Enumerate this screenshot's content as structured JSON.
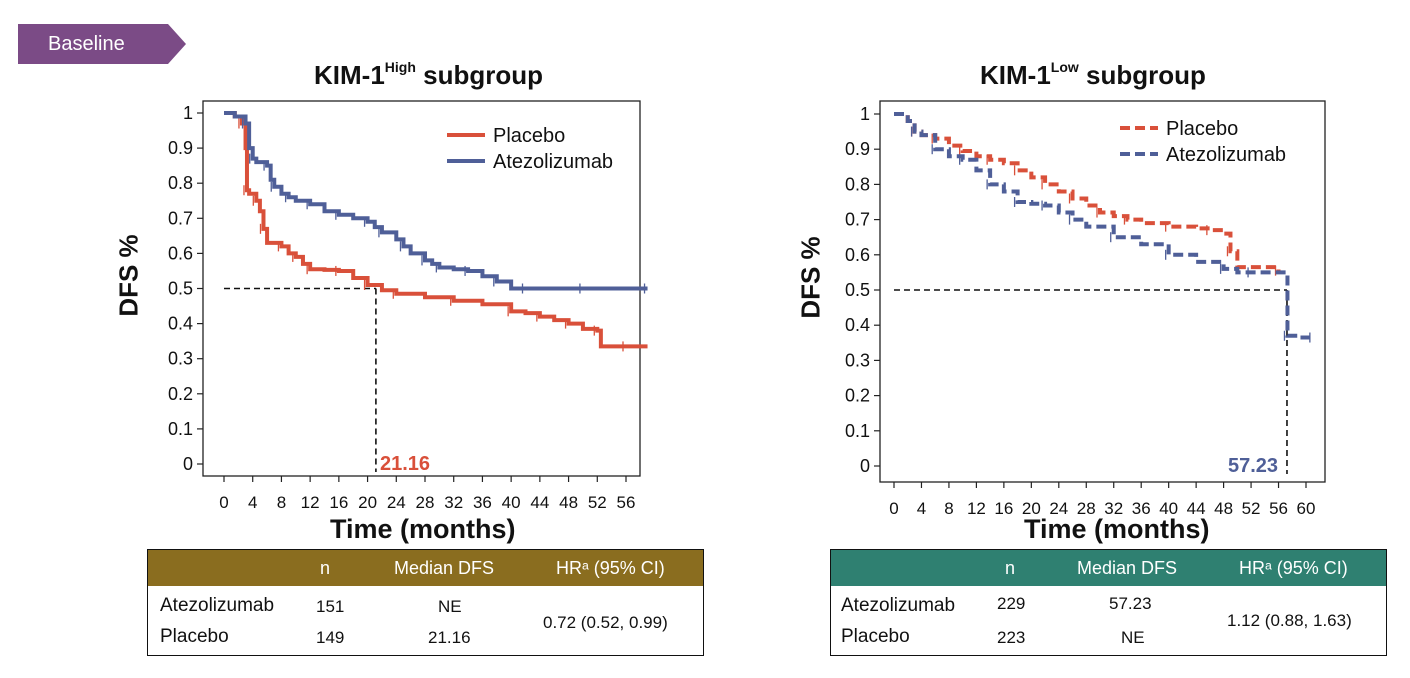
{
  "badge": {
    "label": "Baseline",
    "color": "#7B4B86"
  },
  "colors": {
    "placebo": "#D9503A",
    "atezolizumab": "#4F5F98"
  },
  "panels": [
    {
      "title_main": "KIM-1",
      "title_sup": "High",
      "title_rest": " subgroup",
      "ylabel": "DFS %",
      "xlabel": "Time (months)",
      "median_label": "21.16",
      "table": {
        "header_color": "#8A6D1F",
        "col_n": "n",
        "col_median": "Median DFS",
        "col_hr": "HRᵃ (95% CI)",
        "rows": [
          {
            "name": "Atezolizumab",
            "n": "151",
            "median": "NE"
          },
          {
            "name": "Placebo",
            "n": "149",
            "median": "21.16"
          }
        ],
        "hr": "0.72 (0.52, 0.99)"
      }
    },
    {
      "title_main": "KIM-1",
      "title_sup": "Low",
      "title_rest": " subgroup",
      "ylabel": "DFS %",
      "xlabel": "Time (months)",
      "median_label": "57.23",
      "table": {
        "header_color": "#2F8071",
        "col_n": "n",
        "col_median": "Median DFS",
        "col_hr": "HRᵃ (95% CI)",
        "rows": [
          {
            "name": "Atezolizumab",
            "n": "229",
            "median": "57.23"
          },
          {
            "name": "Placebo",
            "n": "223",
            "median": "NE"
          }
        ],
        "hr": "1.12 (0.88, 1.63)"
      }
    }
  ],
  "chart_data": [
    {
      "type": "line",
      "title": "KIM-1High subgroup",
      "xlabel": "Time (months)",
      "ylabel": "DFS %",
      "xlim": [
        0,
        59
      ],
      "ylim": [
        0,
        1
      ],
      "x_ticks": [
        "0",
        "4",
        "8",
        "12",
        "16",
        "20",
        "24",
        "28",
        "32",
        "36",
        "40",
        "44",
        "48",
        "52",
        "56"
      ],
      "y_ticks": [
        "0",
        "0.1",
        "0.2",
        "0.3",
        "0.4",
        "0.5",
        "0.6",
        "0.7",
        "0.8",
        "0.9",
        "1"
      ],
      "legend_position": "top-right",
      "line_style": "solid",
      "median_x": 21.16,
      "median_y": 0.5,
      "series": [
        {
          "name": "Placebo",
          "color": "#D9503A",
          "x": [
            0,
            1.5,
            2.5,
            3,
            3.2,
            3.5,
            4.5,
            5,
            5.5,
            6,
            8,
            9,
            10,
            11,
            12,
            14,
            16,
            18,
            20,
            22,
            24,
            28,
            32,
            36,
            40,
            42,
            44,
            46,
            48,
            50,
            52,
            52.5,
            56,
            59
          ],
          "y": [
            1.0,
            0.99,
            0.97,
            0.9,
            0.78,
            0.77,
            0.75,
            0.72,
            0.67,
            0.63,
            0.62,
            0.6,
            0.59,
            0.57,
            0.555,
            0.553,
            0.55,
            0.53,
            0.51,
            0.495,
            0.485,
            0.475,
            0.465,
            0.455,
            0.435,
            0.43,
            0.42,
            0.41,
            0.4,
            0.385,
            0.38,
            0.335,
            0.335,
            0.335
          ]
        },
        {
          "name": "Atezolizumab",
          "color": "#4F5F98",
          "x": [
            0,
            1.5,
            3,
            3.5,
            4,
            4.5,
            6,
            6.5,
            7,
            8,
            9,
            10,
            12,
            14,
            16,
            18,
            20,
            21,
            22,
            24,
            25,
            26,
            28,
            29,
            30,
            32,
            34,
            36,
            38,
            40,
            42,
            46,
            50,
            54,
            59
          ],
          "y": [
            1.0,
            0.99,
            0.97,
            0.9,
            0.87,
            0.86,
            0.85,
            0.81,
            0.79,
            0.77,
            0.76,
            0.75,
            0.74,
            0.72,
            0.71,
            0.7,
            0.69,
            0.675,
            0.66,
            0.64,
            0.62,
            0.6,
            0.58,
            0.57,
            0.56,
            0.555,
            0.55,
            0.535,
            0.52,
            0.5,
            0.5,
            0.5,
            0.5,
            0.5,
            0.5
          ]
        }
      ]
    },
    {
      "type": "line",
      "title": "KIM-1Low subgroup",
      "xlabel": "Time (months)",
      "ylabel": "DFS %",
      "xlim": [
        0,
        61
      ],
      "ylim": [
        0,
        1
      ],
      "x_ticks": [
        "0",
        "4",
        "8",
        "12",
        "16",
        "20",
        "24",
        "28",
        "32",
        "36",
        "40",
        "44",
        "48",
        "52",
        "56",
        "60"
      ],
      "y_ticks": [
        "0",
        "0.1",
        "0.2",
        "0.3",
        "0.4",
        "0.5",
        "0.6",
        "0.7",
        "0.8",
        "0.9",
        "1"
      ],
      "legend_position": "top-right",
      "line_style": "dashed",
      "median_x": 57.23,
      "median_y": 0.5,
      "series": [
        {
          "name": "Placebo",
          "color": "#D9503A",
          "x": [
            0,
            2,
            3,
            4,
            6,
            8,
            10,
            12,
            14,
            16,
            18,
            20,
            22,
            24,
            26,
            28,
            30,
            32,
            34,
            36,
            40,
            44,
            46,
            48,
            49,
            50,
            56
          ],
          "y": [
            1.0,
            0.98,
            0.95,
            0.94,
            0.93,
            0.91,
            0.895,
            0.88,
            0.87,
            0.86,
            0.84,
            0.82,
            0.8,
            0.78,
            0.76,
            0.74,
            0.72,
            0.71,
            0.7,
            0.69,
            0.68,
            0.675,
            0.67,
            0.66,
            0.61,
            0.565,
            0.555
          ]
        },
        {
          "name": "Atezolizumab",
          "color": "#4F5F98",
          "x": [
            0,
            2,
            3,
            4,
            6,
            8,
            10,
            12,
            14,
            16,
            18,
            20,
            22,
            24,
            26,
            28,
            32,
            36,
            40,
            44,
            48,
            50,
            52,
            57,
            57.3,
            59,
            61
          ],
          "y": [
            1.0,
            0.98,
            0.95,
            0.94,
            0.9,
            0.88,
            0.87,
            0.84,
            0.8,
            0.78,
            0.75,
            0.745,
            0.74,
            0.72,
            0.7,
            0.68,
            0.65,
            0.63,
            0.6,
            0.58,
            0.56,
            0.55,
            0.55,
            0.55,
            0.37,
            0.365,
            0.365
          ]
        }
      ]
    }
  ]
}
